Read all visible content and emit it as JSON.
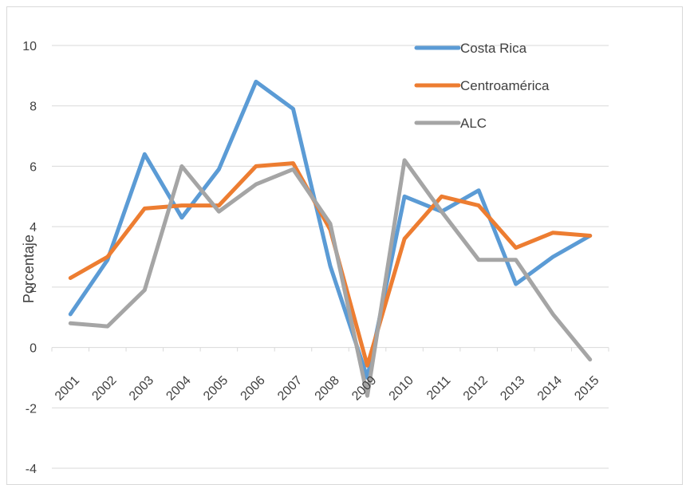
{
  "chart_data": {
    "type": "line",
    "title": "",
    "xlabel": "",
    "ylabel": "Porcentaje",
    "ylim": [
      -4,
      10
    ],
    "yticks": [
      -4,
      -2,
      0,
      2,
      4,
      6,
      8,
      10
    ],
    "grid": "horizontal",
    "legend_position": "top-right",
    "categories": [
      "2001",
      "2002",
      "2003",
      "2004",
      "2005",
      "2006",
      "2007",
      "2008",
      "2009",
      "2010",
      "2011",
      "2012",
      "2013",
      "2014",
      "2015"
    ],
    "series": [
      {
        "name": "Costa Rica",
        "color": "#5b9bd5",
        "values": [
          1.1,
          2.9,
          6.4,
          4.3,
          5.9,
          8.8,
          7.9,
          2.7,
          -1.0,
          5.0,
          4.5,
          5.2,
          2.1,
          3.0,
          3.7
        ]
      },
      {
        "name": "Centroamérica",
        "color": "#ed7d31",
        "values": [
          2.3,
          3.0,
          4.6,
          4.7,
          4.7,
          6.0,
          6.1,
          3.9,
          -0.6,
          3.6,
          5.0,
          4.7,
          3.3,
          3.8,
          3.7
        ]
      },
      {
        "name": "ALC",
        "color": "#a5a5a5",
        "values": [
          0.8,
          0.7,
          1.9,
          6.0,
          4.5,
          5.4,
          5.9,
          4.1,
          -1.6,
          6.2,
          4.5,
          2.9,
          2.9,
          1.1,
          -0.4
        ]
      }
    ]
  }
}
